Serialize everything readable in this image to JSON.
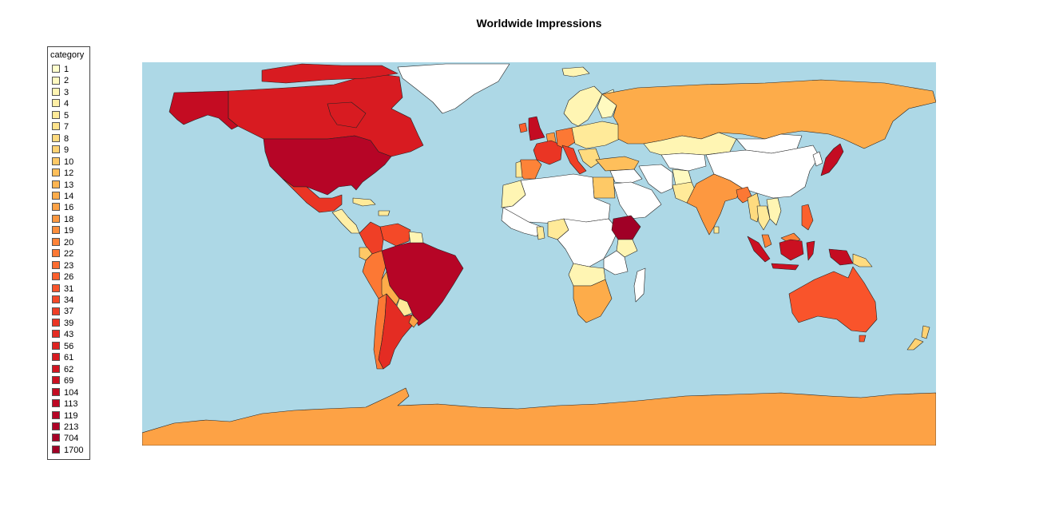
{
  "title": "Worldwide Impressions",
  "legend": {
    "title": "category",
    "entries": [
      {
        "label": "1",
        "color": "#FFFFCC"
      },
      {
        "label": "2",
        "color": "#FFFAC0"
      },
      {
        "label": "3",
        "color": "#FFF5B3"
      },
      {
        "label": "4",
        "color": "#FFEFA6"
      },
      {
        "label": "5",
        "color": "#FFEA99"
      },
      {
        "label": "7",
        "color": "#FEE38C"
      },
      {
        "label": "8",
        "color": "#FEDB7F"
      },
      {
        "label": "9",
        "color": "#FED272"
      },
      {
        "label": "10",
        "color": "#FEC966"
      },
      {
        "label": "12",
        "color": "#FEBF5B"
      },
      {
        "label": "13",
        "color": "#FEB551"
      },
      {
        "label": "14",
        "color": "#FDAC4A"
      },
      {
        "label": "16",
        "color": "#FDA245"
      },
      {
        "label": "18",
        "color": "#FD9840"
      },
      {
        "label": "19",
        "color": "#FD8E3C"
      },
      {
        "label": "20",
        "color": "#FD8338"
      },
      {
        "label": "22",
        "color": "#FC7834"
      },
      {
        "label": "23",
        "color": "#FC6C31"
      },
      {
        "label": "26",
        "color": "#FC602E"
      },
      {
        "label": "31",
        "color": "#F9542B"
      },
      {
        "label": "34",
        "color": "#F44928"
      },
      {
        "label": "37",
        "color": "#EF3F26"
      },
      {
        "label": "39",
        "color": "#EA3524"
      },
      {
        "label": "43",
        "color": "#E42C23"
      },
      {
        "label": "56",
        "color": "#DE2322"
      },
      {
        "label": "61",
        "color": "#D81B21"
      },
      {
        "label": "62",
        "color": "#D21521"
      },
      {
        "label": "69",
        "color": "#CB1021"
      },
      {
        "label": "104",
        "color": "#C40C22"
      },
      {
        "label": "113",
        "color": "#BD0824"
      },
      {
        "label": "119",
        "color": "#B60526"
      },
      {
        "label": "213",
        "color": "#AF0227"
      },
      {
        "label": "704",
        "color": "#A80026"
      },
      {
        "label": "1700",
        "color": "#A00026"
      }
    ]
  },
  "map": {
    "ocean_color": "#ADD8E6",
    "no_data_color": "#FFFFFF",
    "regions": [
      {
        "name": "Canada",
        "color": "#D81B21"
      },
      {
        "name": "Alaska",
        "color": "#C40C22"
      },
      {
        "name": "United States",
        "color": "#B60526"
      },
      {
        "name": "Greenland",
        "color": "#FFFFFF"
      },
      {
        "name": "Mexico",
        "color": "#EA3524"
      },
      {
        "name": "Central America",
        "color": "#FFEFA6"
      },
      {
        "name": "Caribbean",
        "color": "#FFEA99"
      },
      {
        "name": "Colombia",
        "color": "#EF3F26"
      },
      {
        "name": "Venezuela",
        "color": "#F44928"
      },
      {
        "name": "Guianas",
        "color": "#FFF5B3"
      },
      {
        "name": "Ecuador",
        "color": "#FEC966"
      },
      {
        "name": "Peru",
        "color": "#FC7834"
      },
      {
        "name": "Brazil",
        "color": "#B60526"
      },
      {
        "name": "Bolivia",
        "color": "#FDAC4A"
      },
      {
        "name": "Paraguay",
        "color": "#FFEA99"
      },
      {
        "name": "Chile",
        "color": "#FC7834"
      },
      {
        "name": "Argentina",
        "color": "#E42C23"
      },
      {
        "name": "Uruguay",
        "color": "#FDA245"
      },
      {
        "name": "Iceland",
        "color": "#FFF5B3"
      },
      {
        "name": "United Kingdom",
        "color": "#C40C22"
      },
      {
        "name": "Ireland",
        "color": "#FC602E"
      },
      {
        "name": "France",
        "color": "#EA3524"
      },
      {
        "name": "Spain",
        "color": "#FD8338"
      },
      {
        "name": "Portugal",
        "color": "#FFEA99"
      },
      {
        "name": "Germany",
        "color": "#FC7834"
      },
      {
        "name": "Benelux",
        "color": "#FD9840"
      },
      {
        "name": "Italy",
        "color": "#EF3F26"
      },
      {
        "name": "Scandinavia",
        "color": "#FFF5B3"
      },
      {
        "name": "Finland",
        "color": "#FFFAC0"
      },
      {
        "name": "Eastern Europe",
        "color": "#FFEA99"
      },
      {
        "name": "Balkans",
        "color": "#FEDB7F"
      },
      {
        "name": "Turkey",
        "color": "#FEBF5B"
      },
      {
        "name": "Russia",
        "color": "#FDAC4A"
      },
      {
        "name": "Kazakhstan",
        "color": "#FFF5B3"
      },
      {
        "name": "Central Asia",
        "color": "#FFFFFF"
      },
      {
        "name": "Mongolia",
        "color": "#FFFFFF"
      },
      {
        "name": "China",
        "color": "#FFFFFF"
      },
      {
        "name": "Middle East",
        "color": "#FFFFFF"
      },
      {
        "name": "Saudi Arabia",
        "color": "#FFFFFF"
      },
      {
        "name": "Egypt",
        "color": "#FEC966"
      },
      {
        "name": "Iran",
        "color": "#FFFFFF"
      },
      {
        "name": "Afghanistan",
        "color": "#FFFAC0"
      },
      {
        "name": "Pakistan",
        "color": "#FFEA99"
      },
      {
        "name": "India",
        "color": "#FD9840"
      },
      {
        "name": "Sri Lanka",
        "color": "#FFEA99"
      },
      {
        "name": "Bangladesh",
        "color": "#FC7834"
      },
      {
        "name": "Myanmar",
        "color": "#FEDB7F"
      },
      {
        "name": "Thailand",
        "color": "#FFEA99"
      },
      {
        "name": "Vietnam",
        "color": "#FFF5B3"
      },
      {
        "name": "Malaysia",
        "color": "#FD8338"
      },
      {
        "name": "Philippines",
        "color": "#FC602E"
      },
      {
        "name": "Japan",
        "color": "#C40C22"
      },
      {
        "name": "Korea",
        "color": "#FFFFFF"
      },
      {
        "name": "Sumatra",
        "color": "#CB1021"
      },
      {
        "name": "Java",
        "color": "#CB1021"
      },
      {
        "name": "Borneo",
        "color": "#CB1021"
      },
      {
        "name": "Sulawesi",
        "color": "#CB1021"
      },
      {
        "name": "New Guinea",
        "color": "#C40C22"
      },
      {
        "name": "Papua New Guinea",
        "color": "#FEDB7F"
      },
      {
        "name": "Australia",
        "color": "#F9542B"
      },
      {
        "name": "Tasmania",
        "color": "#F9542B"
      },
      {
        "name": "New Zealand",
        "color": "#FED272"
      },
      {
        "name": "North Africa",
        "color": "#FFFFFF"
      },
      {
        "name": "Morocco",
        "color": "#FFF5B3"
      },
      {
        "name": "West Africa",
        "color": "#FFFFFF"
      },
      {
        "name": "Central Africa",
        "color": "#FFFFFF"
      },
      {
        "name": "Nigeria",
        "color": "#FFEA99"
      },
      {
        "name": "Ghana",
        "color": "#FFEA99"
      },
      {
        "name": "Ethiopia",
        "color": "#A00026"
      },
      {
        "name": "Kenya",
        "color": "#FFF5B3"
      },
      {
        "name": "Tanzania",
        "color": "#FFFFFF"
      },
      {
        "name": "Zambia",
        "color": "#FFF5B3"
      },
      {
        "name": "South Africa",
        "color": "#FDAC4A"
      },
      {
        "name": "Madagascar",
        "color": "#FFFFFF"
      },
      {
        "name": "Antarctica",
        "color": "#FDA245"
      }
    ]
  }
}
